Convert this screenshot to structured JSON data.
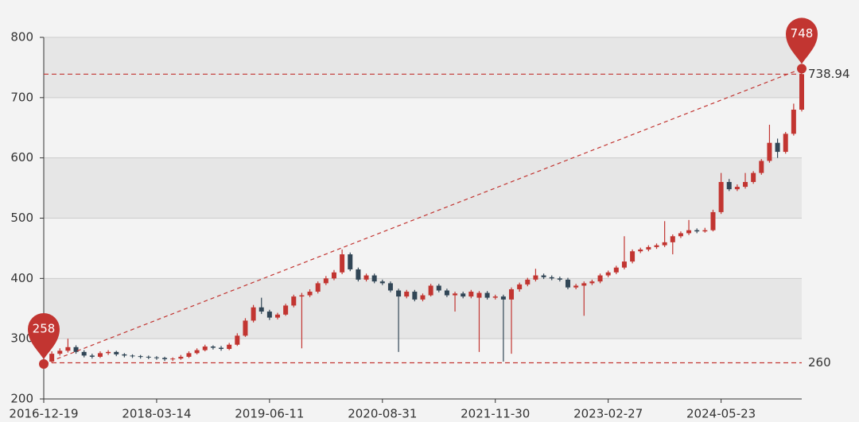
{
  "chart_data": {
    "type": "candlestick",
    "categories": [
      "2016-12-19",
      null,
      null,
      null,
      null,
      null,
      null,
      null,
      null,
      null,
      null,
      null,
      null,
      null,
      "2018-03-14",
      null,
      null,
      null,
      null,
      null,
      null,
      null,
      null,
      null,
      null,
      null,
      null,
      null,
      "2019-06-11",
      null,
      null,
      null,
      null,
      null,
      null,
      null,
      null,
      null,
      null,
      null,
      null,
      null,
      "2020-08-31",
      null,
      null,
      null,
      null,
      null,
      null,
      null,
      null,
      null,
      null,
      null,
      null,
      null,
      "2021-11-30",
      null,
      null,
      null,
      null,
      null,
      null,
      null,
      null,
      null,
      null,
      null,
      null,
      null,
      "2023-02-27",
      null,
      null,
      null,
      null,
      null,
      null,
      null,
      null,
      null,
      null,
      null,
      null,
      null,
      "2024-05-23",
      null,
      null,
      null,
      null,
      null,
      null,
      null,
      null,
      null,
      null
    ],
    "values": [
      [
        265,
        262,
        258,
        268
      ],
      [
        262,
        275,
        260,
        279
      ],
      [
        275,
        280,
        272,
        284
      ],
      [
        280,
        286,
        277,
        300
      ],
      [
        286,
        278,
        275,
        289
      ],
      [
        278,
        272,
        269,
        281
      ],
      [
        272,
        270,
        267,
        275
      ],
      [
        270,
        276,
        268,
        279
      ],
      [
        276,
        278,
        273,
        281
      ],
      [
        278,
        274,
        271,
        280
      ],
      [
        274,
        272,
        269,
        276
      ],
      [
        272,
        271,
        268,
        274
      ],
      [
        271,
        270,
        267,
        273
      ],
      [
        270,
        269,
        266,
        272
      ],
      [
        269,
        268,
        265,
        271
      ],
      [
        268,
        266,
        263,
        270
      ],
      [
        266,
        267,
        263,
        269
      ],
      [
        267,
        270,
        265,
        273
      ],
      [
        270,
        276,
        268,
        279
      ],
      [
        276,
        281,
        274,
        284
      ],
      [
        281,
        287,
        279,
        290
      ],
      [
        287,
        285,
        282,
        289
      ],
      [
        285,
        283,
        280,
        288
      ],
      [
        283,
        290,
        281,
        293
      ],
      [
        290,
        305,
        288,
        309
      ],
      [
        305,
        330,
        303,
        334
      ],
      [
        330,
        352,
        327,
        356
      ],
      [
        352,
        345,
        341,
        368
      ],
      [
        345,
        335,
        331,
        348
      ],
      [
        335,
        340,
        332,
        343
      ],
      [
        340,
        355,
        338,
        358
      ],
      [
        355,
        370,
        352,
        373
      ],
      [
        370,
        372,
        284,
        376
      ],
      [
        372,
        378,
        369,
        382
      ],
      [
        378,
        392,
        375,
        395
      ],
      [
        392,
        400,
        389,
        404
      ],
      [
        400,
        410,
        397,
        414
      ],
      [
        410,
        440,
        407,
        448
      ],
      [
        440,
        415,
        412,
        443
      ],
      [
        415,
        398,
        395,
        418
      ],
      [
        398,
        405,
        395,
        408
      ],
      [
        405,
        395,
        392,
        408
      ],
      [
        395,
        392,
        389,
        398
      ],
      [
        392,
        380,
        377,
        395
      ],
      [
        380,
        370,
        278,
        383
      ],
      [
        370,
        378,
        367,
        381
      ],
      [
        378,
        365,
        362,
        381
      ],
      [
        365,
        372,
        362,
        375
      ],
      [
        372,
        388,
        370,
        391
      ],
      [
        388,
        380,
        377,
        391
      ],
      [
        380,
        372,
        369,
        383
      ],
      [
        372,
        375,
        345,
        378
      ],
      [
        375,
        370,
        367,
        378
      ],
      [
        370,
        378,
        367,
        381
      ],
      [
        368,
        376,
        278,
        379
      ],
      [
        376,
        368,
        365,
        379
      ],
      [
        368,
        370,
        365,
        373
      ],
      [
        370,
        365,
        262,
        373
      ],
      [
        365,
        382,
        275,
        385
      ],
      [
        382,
        390,
        378,
        393
      ],
      [
        390,
        398,
        387,
        401
      ],
      [
        398,
        405,
        395,
        416
      ],
      [
        405,
        402,
        399,
        408
      ],
      [
        402,
        400,
        397,
        405
      ],
      [
        400,
        398,
        395,
        403
      ],
      [
        398,
        385,
        382,
        401
      ],
      [
        385,
        388,
        382,
        391
      ],
      [
        388,
        392,
        338,
        395
      ],
      [
        392,
        395,
        389,
        398
      ],
      [
        395,
        405,
        392,
        408
      ],
      [
        405,
        410,
        402,
        413
      ],
      [
        410,
        418,
        407,
        421
      ],
      [
        418,
        428,
        415,
        470
      ],
      [
        428,
        445,
        425,
        448
      ],
      [
        445,
        448,
        442,
        451
      ],
      [
        448,
        452,
        445,
        455
      ],
      [
        452,
        455,
        449,
        458
      ],
      [
        455,
        460,
        452,
        495
      ],
      [
        460,
        470,
        440,
        473
      ],
      [
        470,
        475,
        467,
        478
      ],
      [
        475,
        480,
        472,
        497
      ],
      [
        480,
        478,
        475,
        483
      ],
      [
        478,
        480,
        476,
        484
      ],
      [
        480,
        510,
        478,
        514
      ],
      [
        510,
        560,
        507,
        575
      ],
      [
        560,
        548,
        545,
        565
      ],
      [
        548,
        552,
        545,
        556
      ],
      [
        552,
        560,
        549,
        575
      ],
      [
        560,
        575,
        557,
        578
      ],
      [
        575,
        595,
        572,
        598
      ],
      [
        595,
        625,
        592,
        655
      ],
      [
        625,
        610,
        600,
        632
      ],
      [
        610,
        640,
        607,
        643
      ],
      [
        640,
        680,
        637,
        690
      ],
      [
        680,
        738.94,
        677,
        748
      ]
    ],
    "up_color": "#c23531",
    "down_color": "#314656",
    "ylim": [
      200,
      800
    ],
    "yticks": [
      200,
      300,
      400,
      500,
      600,
      700,
      800
    ],
    "max_point": 748,
    "min_point": 258,
    "mark_lines": [
      738.94,
      260
    ],
    "mark_color": "#c23531"
  }
}
